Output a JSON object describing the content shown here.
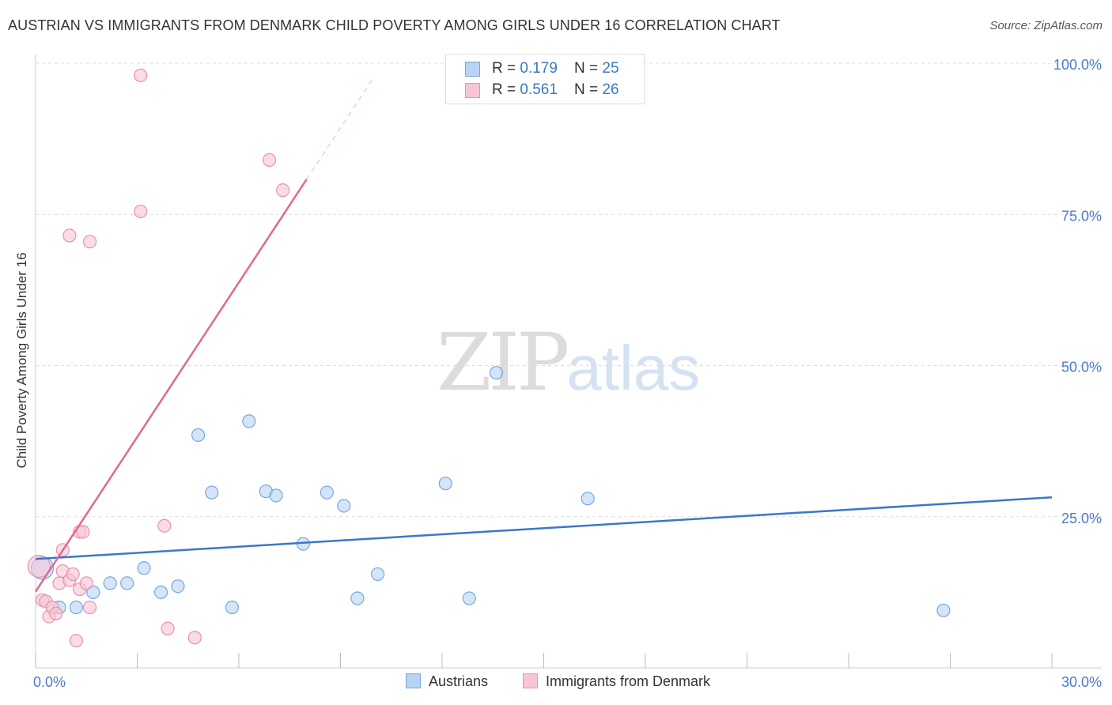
{
  "title": "AUSTRIAN VS IMMIGRANTS FROM DENMARK CHILD POVERTY AMONG GIRLS UNDER 16 CORRELATION CHART",
  "source": "Source: ZipAtlas.com",
  "watermark": {
    "part1": "ZIP",
    "part2": "atlas"
  },
  "colors": {
    "blue_fill": "#b8d3f3",
    "blue_stroke": "#7aa6dc",
    "blue_line": "#3a78c9",
    "pink_fill": "#f9c4d4",
    "pink_stroke": "#e891ad",
    "pink_line": "#e06893",
    "axis_text": "#4a7cc4",
    "grid": "#dddddd"
  },
  "legend": {
    "rows": [
      {
        "r_label": "R = ",
        "r_value": "0.179",
        "n_label": "N = ",
        "n_value": "25"
      },
      {
        "r_label": "R = ",
        "r_value": "0.561",
        "n_label": "N = ",
        "n_value": "26"
      }
    ],
    "bottom": [
      "Austrians",
      "Immigrants from Denmark"
    ]
  },
  "chart_data": {
    "type": "scatter",
    "title": "AUSTRIAN VS IMMIGRANTS FROM DENMARK CHILD POVERTY AMONG GIRLS UNDER 16 CORRELATION CHART",
    "xlabel": "",
    "ylabel": "Child Poverty Among Girls Under 16",
    "xlim": [
      0,
      30
    ],
    "ylim": [
      0,
      100
    ],
    "x_tick_labels": [
      "0.0%",
      "30.0%"
    ],
    "y_tick_labels": [
      "25.0%",
      "50.0%",
      "75.0%",
      "100.0%"
    ],
    "y_ticks": [
      25,
      50,
      75,
      100
    ],
    "x_minor_ticks": [
      0,
      3,
      6,
      9,
      12,
      15,
      18,
      21,
      24,
      27,
      30
    ],
    "grid": true,
    "series": [
      {
        "name": "Austrians",
        "color": "blue",
        "points": [
          [
            0.2,
            16.5
          ],
          [
            1.2,
            10.0
          ],
          [
            1.7,
            12.5
          ],
          [
            2.2,
            14.0
          ],
          [
            2.7,
            14.0
          ],
          [
            3.2,
            16.5
          ],
          [
            3.7,
            12.5
          ],
          [
            4.2,
            13.5
          ],
          [
            4.8,
            38.5
          ],
          [
            5.2,
            29.0
          ],
          [
            5.8,
            10.0
          ],
          [
            6.3,
            40.8
          ],
          [
            6.8,
            29.2
          ],
          [
            7.1,
            28.5
          ],
          [
            7.9,
            20.5
          ],
          [
            8.6,
            29.0
          ],
          [
            9.1,
            26.8
          ],
          [
            9.5,
            11.5
          ],
          [
            10.1,
            15.5
          ],
          [
            12.1,
            30.5
          ],
          [
            12.8,
            11.5
          ],
          [
            13.6,
            48.8
          ],
          [
            16.3,
            28.0
          ],
          [
            26.8,
            9.5
          ],
          [
            0.7,
            10.0
          ]
        ],
        "trend": {
          "x0": 0,
          "y0": 18.0,
          "x1": 30,
          "y1": 28.2
        }
      },
      {
        "name": "Immigrants from Denmark",
        "color": "pink",
        "points": [
          [
            0.1,
            16.8
          ],
          [
            0.2,
            11.2
          ],
          [
            0.3,
            11.0
          ],
          [
            0.4,
            8.5
          ],
          [
            0.5,
            10.0
          ],
          [
            0.6,
            9.0
          ],
          [
            0.7,
            14.0
          ],
          [
            0.8,
            16.0
          ],
          [
            0.8,
            19.5
          ],
          [
            1.0,
            14.5
          ],
          [
            1.1,
            15.5
          ],
          [
            1.2,
            4.5
          ],
          [
            1.3,
            22.5
          ],
          [
            1.3,
            13.0
          ],
          [
            1.4,
            22.5
          ],
          [
            1.5,
            14.0
          ],
          [
            1.6,
            10.0
          ],
          [
            1.0,
            71.5
          ],
          [
            1.6,
            70.5
          ],
          [
            3.1,
            98.0
          ],
          [
            3.1,
            75.5
          ],
          [
            3.8,
            23.5
          ],
          [
            3.9,
            6.5
          ],
          [
            4.7,
            5.0
          ],
          [
            6.9,
            84.0
          ],
          [
            7.3,
            79.0
          ]
        ],
        "trend": {
          "x0": 0,
          "y0": 12.6,
          "x1": 8.0,
          "y1": 80.8
        },
        "trend_dashed": {
          "x0": 8.0,
          "y0": 80.8,
          "x1": 10.0,
          "y1": 97.8
        }
      }
    ]
  }
}
